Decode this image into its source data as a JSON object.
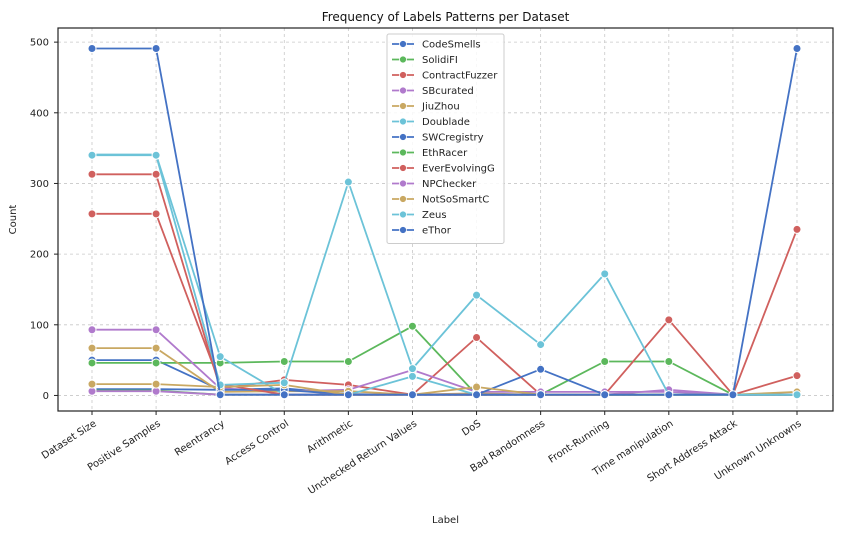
{
  "chart_data": {
    "type": "line",
    "title": "Frequency of Labels Patterns per Dataset",
    "xlabel": "Label",
    "ylabel": "Count",
    "ylim": [
      -22,
      520
    ],
    "yticks": [
      0,
      100,
      200,
      300,
      400,
      500
    ],
    "grid": true,
    "legend_position": "top-center",
    "categories": [
      "Dataset Size",
      "Positive Samples",
      "Reentrancy",
      "Access Control",
      "Arithmetic",
      "Unchecked Return Values",
      "DoS",
      "Bad Randomness",
      "Front-Running",
      "Time manipulation",
      "Short Address Attack",
      "Unknown Unknowns"
    ],
    "series": [
      {
        "name": "CodeSmells",
        "color": "#4472C4",
        "values": [
          50,
          50,
          8,
          10,
          2,
          1,
          1,
          1,
          1,
          1,
          1,
          1
        ]
      },
      {
        "name": "SolidiFI",
        "color": "#5CB85C",
        "values": [
          46,
          46,
          46,
          48,
          48,
          98,
          1,
          1,
          48,
          48,
          1,
          1
        ]
      },
      {
        "name": "ContractFuzzer",
        "color": "#D0605E",
        "values": [
          313,
          313,
          10,
          22,
          15,
          1,
          82,
          1,
          1,
          1,
          1,
          28
        ]
      },
      {
        "name": "SBcurated",
        "color": "#B07ACC",
        "values": [
          93,
          93,
          10,
          6,
          8,
          36,
          5,
          5,
          5,
          5,
          1,
          1
        ]
      },
      {
        "name": "JiuZhou",
        "color": "#C9A862",
        "values": [
          67,
          67,
          5,
          6,
          6,
          1,
          3,
          1,
          1,
          1,
          1,
          1
        ]
      },
      {
        "name": "Doublade",
        "color": "#6CC3D8",
        "values": [
          341,
          341,
          55,
          1,
          1,
          27,
          1,
          1,
          1,
          1,
          1,
          1
        ]
      },
      {
        "name": "SWCregistry",
        "color": "#4472C4",
        "values": [
          9,
          9,
          8,
          8,
          1,
          1,
          1,
          37,
          1,
          1,
          1,
          1
        ]
      },
      {
        "name": "EthRacer",
        "color": "#5CB85C",
        "values": [
          7,
          7,
          1,
          1,
          1,
          1,
          1,
          1,
          1,
          1,
          1,
          1
        ]
      },
      {
        "name": "EverEvolvingG",
        "color": "#D0605E",
        "values": [
          257,
          257,
          16,
          1,
          1,
          1,
          1,
          1,
          1,
          107,
          1,
          235
        ]
      },
      {
        "name": "NPChecker",
        "color": "#B07ACC",
        "values": [
          6,
          6,
          1,
          1,
          1,
          1,
          1,
          1,
          1,
          8,
          1,
          1
        ]
      },
      {
        "name": "NotSoSmartC",
        "color": "#C9A862",
        "values": [
          16,
          16,
          12,
          15,
          1,
          1,
          12,
          1,
          1,
          1,
          1,
          5
        ]
      },
      {
        "name": "Zeus",
        "color": "#6CC3D8",
        "values": [
          340,
          340,
          15,
          18,
          302,
          38,
          142,
          72,
          172,
          1,
          1,
          1
        ]
      },
      {
        "name": "eThor",
        "color": "#4472C4",
        "values": [
          491,
          491,
          1,
          1,
          1,
          1,
          1,
          1,
          1,
          1,
          1,
          491
        ]
      }
    ]
  }
}
